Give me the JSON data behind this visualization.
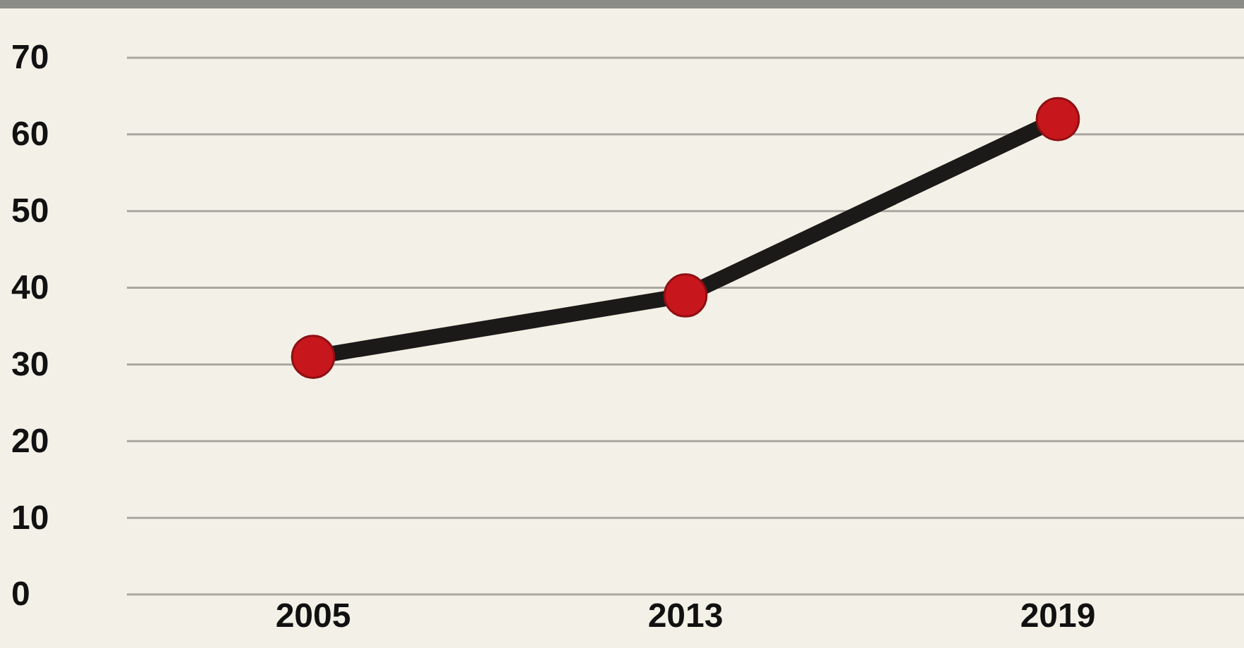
{
  "chart_data": {
    "type": "line",
    "categories": [
      "2005",
      "2013",
      "2019"
    ],
    "series": [
      {
        "color": "#c8161d",
        "values": [
          31,
          39,
          62
        ]
      }
    ],
    "ylim": [
      0,
      70
    ],
    "yticks": [
      0,
      10,
      20,
      30,
      40,
      50,
      60,
      70
    ],
    "grid": "y",
    "marker": "circle",
    "line_style": "solid"
  }
}
